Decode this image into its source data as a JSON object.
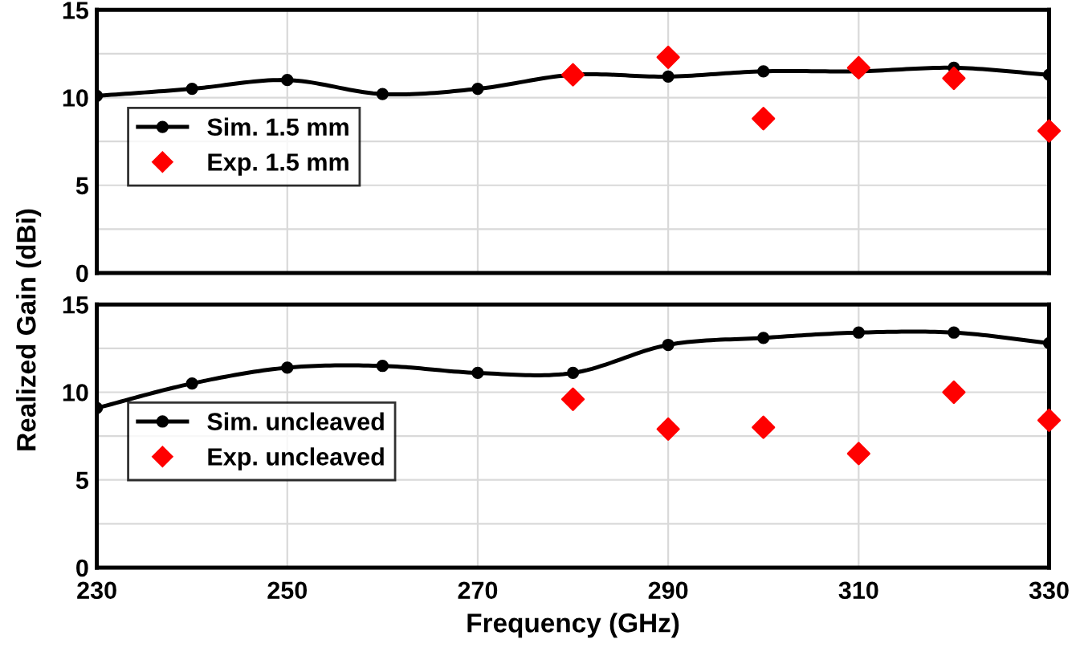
{
  "chart_data": [
    {
      "type": "line",
      "ylabel": "Realized Gain (dBi)",
      "x": [
        230,
        240,
        250,
        260,
        270,
        280,
        290,
        300,
        310,
        320,
        330
      ],
      "xlim": [
        230,
        330
      ],
      "xticks": [
        230,
        250,
        270,
        290,
        310,
        330
      ],
      "ylim": [
        0,
        15
      ],
      "yticks": [
        0,
        {
          "value": 2.5,
          "label": null
        },
        5,
        {
          "value": 7.5,
          "label": null
        },
        10,
        {
          "value": 12.5,
          "label": null
        },
        15
      ],
      "grid": true,
      "legend": "left",
      "tick_labels": "y",
      "series": [
        {
          "name": "Sim. 1.5 mm",
          "color": "#000000",
          "marker": "circle",
          "values": [
            10.1,
            10.5,
            11.0,
            10.2,
            10.5,
            11.3,
            11.2,
            11.5,
            11.5,
            11.7,
            11.3
          ]
        },
        {
          "name": "Exp. 1.5 mm",
          "type": "scatter",
          "color": "#ff0000",
          "marker": "diamond",
          "x": [
            280,
            290,
            300,
            310,
            320,
            330
          ],
          "values": [
            11.3,
            12.3,
            8.8,
            11.7,
            11.1,
            8.1
          ]
        }
      ]
    },
    {
      "type": "line",
      "xlabel": "Frequency (GHz)",
      "x": [
        230,
        240,
        250,
        260,
        270,
        280,
        290,
        300,
        310,
        320,
        330
      ],
      "xlim": [
        230,
        330
      ],
      "xticks": [
        230,
        250,
        270,
        290,
        310,
        330
      ],
      "ylim": [
        0,
        15
      ],
      "yticks": [
        0,
        {
          "value": 2.5,
          "label": null
        },
        5,
        {
          "value": 7.5,
          "label": null
        },
        10,
        {
          "value": 12.5,
          "label": null
        },
        15
      ],
      "grid": true,
      "legend": "left",
      "series": [
        {
          "name": "Sim. uncleaved",
          "color": "#000000",
          "marker": "circle",
          "values": [
            9.1,
            10.5,
            11.4,
            11.5,
            11.1,
            11.1,
            12.7,
            13.1,
            13.4,
            13.4,
            12.8
          ]
        },
        {
          "name": "Exp. uncleaved",
          "type": "scatter",
          "color": "#ff0000",
          "marker": "diamond",
          "x": [
            280,
            290,
            300,
            310,
            320,
            330
          ],
          "values": [
            9.6,
            7.9,
            8.0,
            6.5,
            10.0,
            8.4
          ]
        }
      ]
    }
  ]
}
